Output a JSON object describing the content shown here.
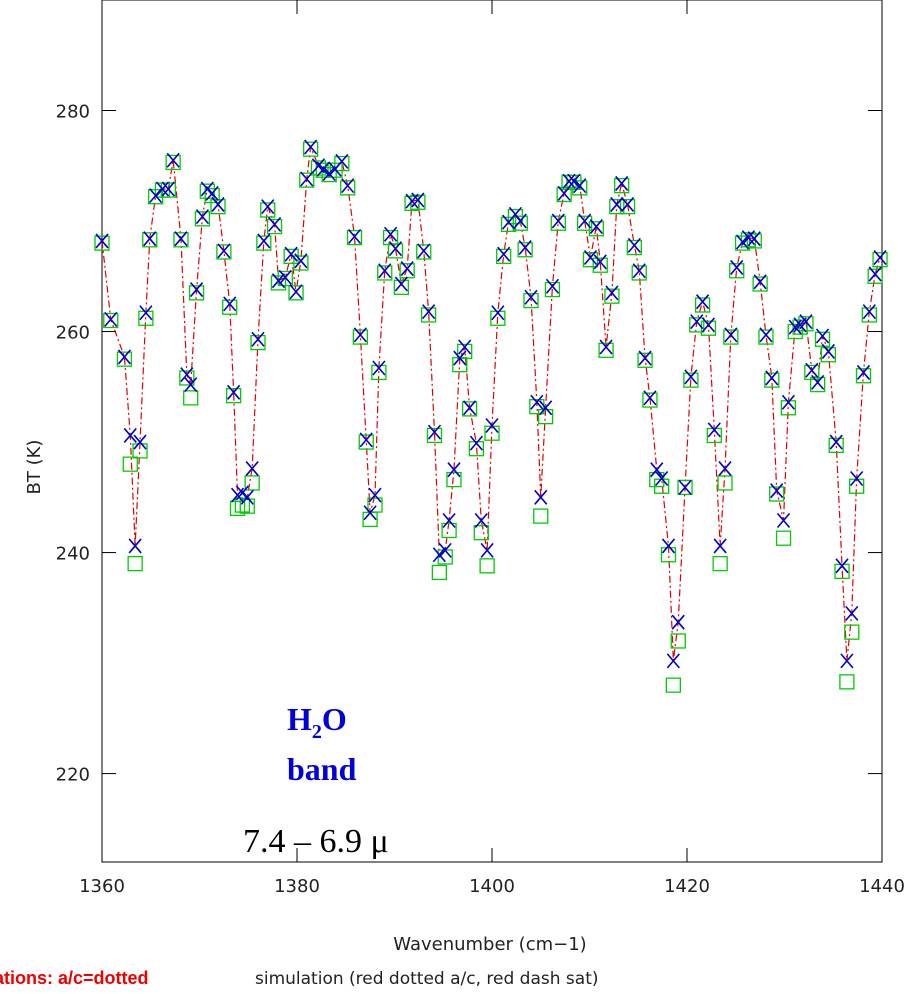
{
  "chart_data": {
    "type": "scatter",
    "xlabel": "Wavenumber (cm−1)",
    "ylabel": "BT (K)",
    "xlim": [
      1360,
      1440
    ],
    "xticks": [
      1360,
      1380,
      1400,
      1420,
      1440
    ],
    "ylim": [
      212,
      290
    ],
    "yticks": [
      220,
      240,
      260,
      280
    ],
    "molecule": [
      "H",
      "2",
      "O"
    ],
    "band_label": "band",
    "wavelength_label": "7.4 – 6.9 μ",
    "footer_left": "ations:  a/c=dotted",
    "footer_right": "simulation (red dotted a/c, red dash sat)",
    "x": [
      1360.0,
      1360.9,
      1362.3,
      1362.9,
      1363.4,
      1363.9,
      1364.5,
      1364.9,
      1365.5,
      1366.2,
      1366.8,
      1367.3,
      1368.1,
      1368.7,
      1369.1,
      1369.7,
      1370.3,
      1370.8,
      1371.3,
      1371.9,
      1372.5,
      1373.1,
      1373.5,
      1373.9,
      1374.4,
      1374.9,
      1375.4,
      1376.0,
      1376.6,
      1377.0,
      1377.7,
      1378.1,
      1378.8,
      1379.4,
      1379.9,
      1380.4,
      1381.0,
      1381.4,
      1382.2,
      1382.7,
      1383.3,
      1383.9,
      1384.6,
      1385.2,
      1385.9,
      1386.5,
      1387.1,
      1387.5,
      1388.0,
      1388.4,
      1389.0,
      1389.6,
      1390.1,
      1390.7,
      1391.3,
      1391.8,
      1392.4,
      1393.0,
      1393.5,
      1394.1,
      1394.6,
      1395.2,
      1395.6,
      1396.1,
      1396.7,
      1397.2,
      1397.7,
      1398.4,
      1398.9,
      1399.5,
      1400.0,
      1400.6,
      1401.2,
      1401.7,
      1402.4,
      1402.9,
      1403.4,
      1404.0,
      1404.6,
      1405.0,
      1405.5,
      1406.2,
      1406.8,
      1407.4,
      1407.9,
      1408.4,
      1409.0,
      1409.5,
      1410.1,
      1410.7,
      1411.1,
      1411.7,
      1412.3,
      1412.8,
      1413.3,
      1413.9,
      1414.6,
      1415.1,
      1415.7,
      1416.2,
      1416.9,
      1417.4,
      1418.1,
      1418.6,
      1419.1,
      1419.8,
      1420.4,
      1421.0,
      1421.6,
      1422.2,
      1422.8,
      1423.4,
      1423.9,
      1424.5,
      1425.1,
      1425.7,
      1426.3,
      1426.9,
      1427.5,
      1428.1,
      1428.7,
      1429.2,
      1429.9,
      1430.4,
      1431.1,
      1431.6,
      1432.2,
      1432.8,
      1433.4,
      1433.9,
      1434.5,
      1435.3,
      1435.9,
      1436.4,
      1436.9,
      1437.4,
      1438.1,
      1438.7,
      1439.3,
      1439.8
    ],
    "series": [
      {
        "color": "#00cc00",
        "marker": "square",
        "values": [
          268.0,
          261.0,
          257.5,
          248.0,
          239.0,
          249.2,
          261.2,
          268.3,
          272.2,
          272.8,
          272.8,
          275.3,
          268.3,
          255.8,
          254.0,
          263.5,
          270.2,
          272.7,
          272.3,
          271.3,
          267.2,
          262.2,
          254.2,
          244.0,
          244.3,
          244.2,
          246.3,
          259.0,
          268.0,
          271.0,
          269.5,
          264.4,
          264.8,
          266.8,
          263.5,
          266.2,
          273.7,
          276.5,
          274.8,
          274.6,
          274.2,
          274.6,
          275.2,
          273.0,
          268.5,
          259.5,
          250.0,
          243.0,
          244.3,
          256.3,
          265.3,
          268.5,
          267.3,
          264.0,
          265.5,
          271.6,
          271.7,
          267.2,
          261.5,
          250.6,
          238.2,
          239.6,
          242.0,
          246.6,
          257.0,
          258.2,
          253.0,
          249.4,
          241.8,
          238.8,
          250.8,
          261.2,
          266.8,
          269.7,
          270.4,
          269.8,
          267.4,
          262.8,
          253.2,
          243.3,
          252.3,
          263.8,
          269.8,
          272.4,
          273.5,
          273.5,
          273.0,
          269.8,
          266.5,
          269.3,
          266.0,
          258.3,
          263.2,
          271.3,
          273.2,
          271.3,
          267.6,
          265.3,
          257.4,
          253.8,
          246.6,
          246.0,
          239.8,
          228.0,
          232.0,
          245.9,
          255.6,
          260.6,
          262.4,
          260.3,
          250.6,
          239.0,
          246.3,
          259.5,
          265.5,
          268.0,
          268.3,
          268.2,
          264.3,
          259.5,
          255.6,
          245.3,
          241.3,
          253.1,
          260.0,
          260.4,
          260.7,
          256.3,
          255.2,
          259.3,
          257.9,
          249.7,
          238.3,
          228.3,
          232.8,
          246.0,
          256.0,
          261.5,
          265.0,
          266.5
        ]
      },
      {
        "color": "#0000cc",
        "marker": "x",
        "line_color": "#e00000",
        "values": [
          268.2,
          261.1,
          257.7,
          250.6,
          240.6,
          250.0,
          261.7,
          268.4,
          272.3,
          272.9,
          272.9,
          275.5,
          268.4,
          256.1,
          255.2,
          263.8,
          270.4,
          272.9,
          272.5,
          271.5,
          267.3,
          262.5,
          254.5,
          245.2,
          245.4,
          245.0,
          247.6,
          259.3,
          268.2,
          271.3,
          269.7,
          264.6,
          264.9,
          267.0,
          263.6,
          266.4,
          273.8,
          276.7,
          275.0,
          274.7,
          274.3,
          274.7,
          275.4,
          273.2,
          268.6,
          259.7,
          250.2,
          243.6,
          245.2,
          256.7,
          265.5,
          268.8,
          267.5,
          264.3,
          265.7,
          271.8,
          271.9,
          267.3,
          261.8,
          250.9,
          239.8,
          240.2,
          242.9,
          247.5,
          257.6,
          258.6,
          253.1,
          249.9,
          242.9,
          240.2,
          251.5,
          261.7,
          267.0,
          269.9,
          270.6,
          270.0,
          267.6,
          263.1,
          253.6,
          245.0,
          253.1,
          264.1,
          270.0,
          272.5,
          273.6,
          273.6,
          273.2,
          270.0,
          266.7,
          269.5,
          266.3,
          258.6,
          263.5,
          271.5,
          273.4,
          271.5,
          267.8,
          265.5,
          257.6,
          254.0,
          247.5,
          246.7,
          240.6,
          230.2,
          233.7,
          245.9,
          255.9,
          260.9,
          262.7,
          260.6,
          251.1,
          240.6,
          247.6,
          259.7,
          265.8,
          268.1,
          268.5,
          268.4,
          264.5,
          259.7,
          255.8,
          245.6,
          242.9,
          253.6,
          260.4,
          260.6,
          260.9,
          256.5,
          255.4,
          259.6,
          258.2,
          250.0,
          238.8,
          230.2,
          234.5,
          246.7,
          256.3,
          261.8,
          265.2,
          266.7
        ]
      }
    ]
  }
}
